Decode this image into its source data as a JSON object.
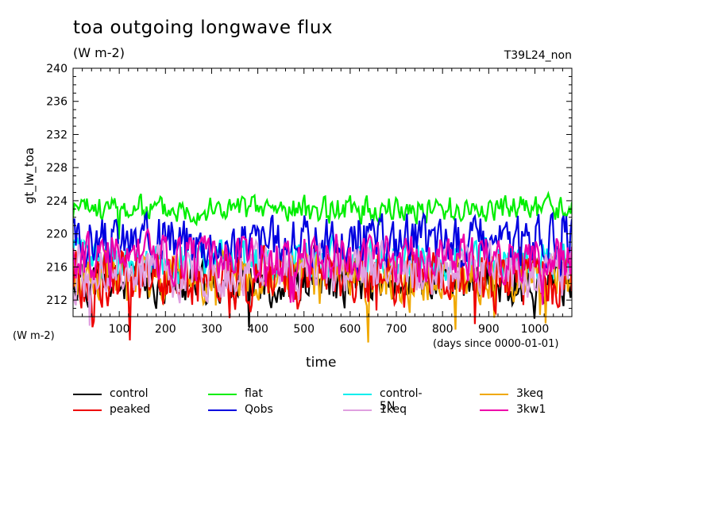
{
  "chart_data": {
    "type": "line",
    "title": "toa outgoing longwave flux",
    "units": "(W m-2)",
    "run_label": "T39L24_non",
    "ylabel": "gt_lw_toa",
    "yunits": "(W m-2)",
    "xlabel": "time",
    "xunits": "(days since 0000-01-01)",
    "xlim": [
      0,
      1080
    ],
    "ylim": [
      210,
      240
    ],
    "xticks": [
      100,
      200,
      300,
      400,
      500,
      600,
      700,
      800,
      900,
      1000
    ],
    "yticks": [
      212,
      216,
      220,
      224,
      228,
      232,
      236,
      240
    ],
    "series": [
      {
        "name": "control",
        "color": "#000000",
        "mean": 214.0,
        "amp": 1.6,
        "seed": 11
      },
      {
        "name": "flat",
        "color": "#00ee00",
        "mean": 223.0,
        "amp": 1.0,
        "seed": 23
      },
      {
        "name": "control-5N",
        "color": "#00eeee",
        "mean": 216.8,
        "amp": 1.5,
        "seed": 37
      },
      {
        "name": "3keq",
        "color": "#f0a800",
        "mean": 214.8,
        "amp": 1.8,
        "seed": 41
      },
      {
        "name": "peaked",
        "color": "#ee0000",
        "mean": 214.6,
        "amp": 2.2,
        "seed": 53
      },
      {
        "name": "Qobs",
        "color": "#0000e0",
        "mean": 219.2,
        "amp": 1.9,
        "seed": 67
      },
      {
        "name": "1keq",
        "color": "#e0a0e0",
        "mean": 215.5,
        "amp": 2.0,
        "seed": 71
      },
      {
        "name": "3kw1",
        "color": "#ee00aa",
        "mean": 217.0,
        "amp": 1.7,
        "seed": 89
      }
    ]
  },
  "legend": [
    {
      "label": "control",
      "color": "#000000"
    },
    {
      "label": "flat",
      "color": "#00ee00"
    },
    {
      "label": "control-5N",
      "color": "#00eeee"
    },
    {
      "label": "3keq",
      "color": "#f0a800"
    },
    {
      "label": "peaked",
      "color": "#ee0000"
    },
    {
      "label": "Qobs",
      "color": "#0000e0"
    },
    {
      "label": "1keq",
      "color": "#e0a0e0"
    },
    {
      "label": "3kw1",
      "color": "#ee00aa"
    }
  ]
}
